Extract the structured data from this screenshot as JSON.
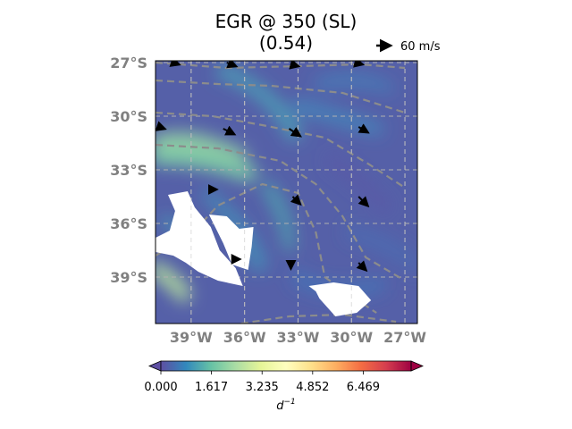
{
  "chart_data": {
    "type": "heatmap",
    "title_line1": "EGR @ 350 (SL)",
    "title_line2": "(0.54)",
    "quiver_key_label": "60 m/s",
    "x_ticks": [
      "39°W",
      "36°W",
      "33°W",
      "30°W",
      "27°W"
    ],
    "x_tick_values": [
      -39,
      -36,
      -33,
      -30,
      -27
    ],
    "y_ticks": [
      "27°S",
      "30°S",
      "33°S",
      "36°S",
      "39°S"
    ],
    "y_tick_values": [
      -27,
      -30,
      -33,
      -36,
      -39
    ],
    "xlim": [
      -41,
      -26.3
    ],
    "ylim": [
      -41.6,
      -26.9
    ],
    "colorbar": {
      "colormap": "Spectral_r",
      "ticks": [
        "0.000",
        "1.617",
        "3.235",
        "4.852",
        "6.469"
      ],
      "tick_values": [
        0.0,
        1.617,
        3.235,
        4.852,
        6.469
      ],
      "range": [
        0.0,
        8.0
      ],
      "extend": "both",
      "label": "d−1",
      "label_base": "d",
      "label_exp": "−1"
    },
    "land_masks": [
      {
        "name": "land-west",
        "lonlat": [
          [
            -40.3,
            -34.4
          ],
          [
            -39.2,
            -34.2
          ],
          [
            -38.8,
            -35.1
          ],
          [
            -37.9,
            -36.2
          ],
          [
            -37.4,
            -37.5
          ],
          [
            -36.5,
            -38.5
          ],
          [
            -36.1,
            -39.5
          ],
          [
            -37.5,
            -39.2
          ],
          [
            -38.6,
            -38.7
          ],
          [
            -39.3,
            -38.2
          ],
          [
            -40.0,
            -37.8
          ],
          [
            -41.0,
            -37.6
          ],
          [
            -41.0,
            -36.8
          ],
          [
            -40.2,
            -36.4
          ],
          [
            -39.9,
            -35.3
          ]
        ]
      },
      {
        "name": "land-mid",
        "lonlat": [
          [
            -38.0,
            -35.5
          ],
          [
            -37.0,
            -35.6
          ],
          [
            -36.3,
            -36.3
          ],
          [
            -35.5,
            -36.2
          ],
          [
            -35.6,
            -37.3
          ],
          [
            -35.8,
            -38.6
          ],
          [
            -36.7,
            -38.3
          ],
          [
            -37.2,
            -37.1
          ]
        ]
      },
      {
        "name": "land-east",
        "lonlat": [
          [
            -32.4,
            -39.5
          ],
          [
            -31.0,
            -39.3
          ],
          [
            -29.6,
            -39.5
          ],
          [
            -28.9,
            -40.3
          ],
          [
            -29.7,
            -41.0
          ],
          [
            -30.9,
            -41.2
          ],
          [
            -31.8,
            -40.2
          ],
          [
            -32.0,
            -39.8
          ]
        ]
      }
    ],
    "contours_lonlat": [
      [
        [
          -41.0,
          -27.0
        ],
        [
          -37.0,
          -27.3
        ],
        [
          -33.0,
          -27.2
        ],
        [
          -29.5,
          -27.1
        ],
        [
          -27.0,
          -27.3
        ]
      ],
      [
        [
          -41.0,
          -28.0
        ],
        [
          -37.5,
          -28.2
        ],
        [
          -34.5,
          -28.3
        ],
        [
          -30.5,
          -28.7
        ],
        [
          -27.0,
          -29.8
        ]
      ],
      [
        [
          -41.0,
          -29.8
        ],
        [
          -37.8,
          -30.0
        ],
        [
          -35.0,
          -30.5
        ],
        [
          -31.5,
          -31.2
        ],
        [
          -29.0,
          -32.7
        ],
        [
          -27.0,
          -34.0
        ]
      ],
      [
        [
          -41.0,
          -31.6
        ],
        [
          -37.5,
          -31.8
        ],
        [
          -34.0,
          -32.5
        ],
        [
          -32.0,
          -33.8
        ],
        [
          -30.5,
          -35.6
        ],
        [
          -29.2,
          -37.9
        ],
        [
          -27.0,
          -39.2
        ]
      ],
      [
        [
          -41.0,
          -37.8
        ],
        [
          -39.0,
          -36.6
        ],
        [
          -37.5,
          -35.0
        ],
        [
          -35.0,
          -33.8
        ],
        [
          -33.0,
          -34.3
        ],
        [
          -32.0,
          -36.5
        ],
        [
          -31.5,
          -39.0
        ],
        [
          -29.8,
          -40.2
        ],
        [
          -28.6,
          -41.0
        ]
      ],
      [
        [
          -36.2,
          -41.6
        ],
        [
          -33.5,
          -41.2
        ],
        [
          -30.5,
          -41.1
        ],
        [
          -27.5,
          -41.5
        ]
      ]
    ],
    "vectors": [
      {
        "lon": -40.0,
        "lat": -27.0,
        "u": 3,
        "v": -1
      },
      {
        "lon": -37.0,
        "lat": -27.0,
        "u": 5,
        "v": -2
      },
      {
        "lon": -33.4,
        "lat": -27.1,
        "u": 4,
        "v": -1
      },
      {
        "lon": -29.8,
        "lat": -27.0,
        "u": 4,
        "v": -1
      },
      {
        "lon": -40.8,
        "lat": -30.6,
        "u": 3,
        "v": -1
      },
      {
        "lon": -37.2,
        "lat": -30.7,
        "u": 6,
        "v": -3
      },
      {
        "lon": -33.5,
        "lat": -30.7,
        "u": 6,
        "v": -4
      },
      {
        "lon": -29.6,
        "lat": -30.6,
        "u": 5,
        "v": -3
      },
      {
        "lon": -33.3,
        "lat": -34.5,
        "u": 4,
        "v": -4
      },
      {
        "lon": -29.6,
        "lat": -34.5,
        "u": 5,
        "v": -5
      },
      {
        "lon": -33.4,
        "lat": -38.2,
        "u": 0,
        "v": -3
      },
      {
        "lon": -29.6,
        "lat": -38.2,
        "u": 4,
        "v": -4
      },
      {
        "lon": -37.7,
        "lat": -34.1,
        "u": 1,
        "v": 0
      },
      {
        "lon": -36.4,
        "lat": -38.0,
        "u": 1,
        "v": 0
      }
    ],
    "grid": true
  }
}
